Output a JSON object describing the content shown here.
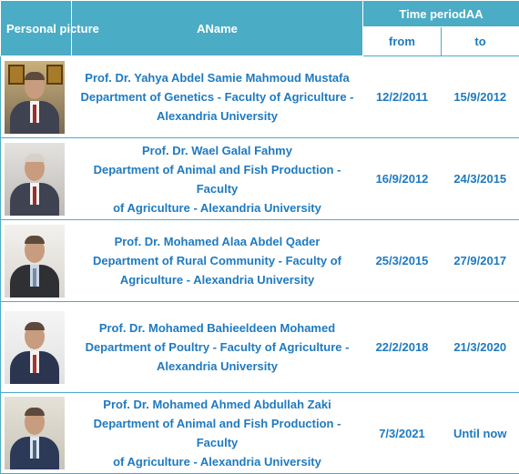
{
  "header": {
    "personal_picture": "Personal picture",
    "name": "AName",
    "time_period": "Time periodAA",
    "from": "from",
    "to": "to"
  },
  "rows": [
    {
      "name": "Prof. Dr. Yahya Abdel Samie Mahmoud Mustafa",
      "department": "Department of Genetics - Faculty of Agriculture -",
      "university": "Alexandria University",
      "from": "12/2/2011",
      "to": "15/9/2012",
      "photo_icon": "portrait-photo"
    },
    {
      "name": "Prof. Dr. Wael Galal Fahmy",
      "department": "Department of Animal and Fish Production - Faculty",
      "university": "of Agriculture - Alexandria University",
      "from": "16/9/2012",
      "to": "24/3/2015",
      "photo_icon": "portrait-photo"
    },
    {
      "name": "Prof. Dr. Mohamed Alaa Abdel Qader",
      "department": "Department of Rural Community -  Faculty of",
      "university": "Agriculture - Alexandria University",
      "from": "25/3/2015",
      "to": "27/9/2017",
      "photo_icon": "portrait-photo"
    },
    {
      "name": "Prof. Dr. Mohamed Bahieeldeen Mohamed",
      "department": "Department of  Poultry - Faculty of Agriculture -",
      "university": "Alexandria University",
      "from": "22/2/2018",
      "to": "21/3/2020",
      "photo_icon": "portrait-photo"
    },
    {
      "name": "Prof. Dr. Mohamed Ahmed Abdullah Zaki",
      "department": "Department of Animal and Fish Production - Faculty",
      "university": "of Agriculture - Alexandria University",
      "from": "7/3/2021",
      "to": "Until now",
      "photo_icon": "portrait-photo"
    }
  ],
  "colors": {
    "header_bg": "#4bacc6",
    "text_blue": "#1f7ac0",
    "border": "#4bacc6"
  }
}
